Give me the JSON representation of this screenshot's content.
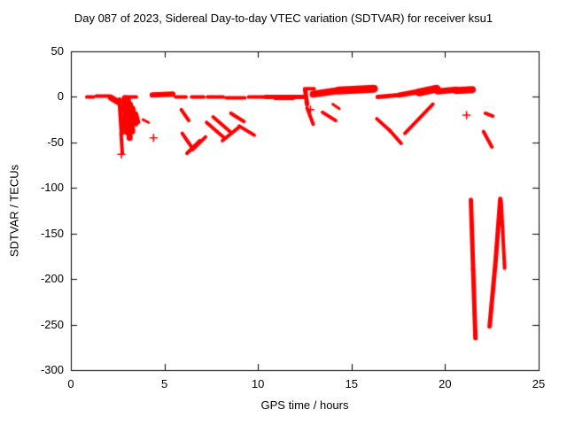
{
  "chart_data": {
    "type": "scatter",
    "title": "Day 087 of 2023, Sidereal Day-to-day VTEC variation (SDTVAR) for receiver ksu1",
    "xlabel": "GPS time / hours",
    "ylabel": "SDTVAR / TECUs",
    "xlim": [
      0,
      25
    ],
    "ylim": [
      -300,
      50
    ],
    "x_ticks": [
      0,
      5,
      10,
      15,
      20,
      25
    ],
    "x_tick_labels": [
      "0",
      "5",
      "10",
      "15",
      "20",
      "25"
    ],
    "y_ticks": [
      50,
      0,
      -50,
      -100,
      -150,
      -200,
      -250,
      -300
    ],
    "y_tick_labels": [
      "50",
      "0",
      "-50",
      "-100",
      "-150",
      "-200",
      "-250",
      "-300"
    ],
    "grid": false,
    "legend": "none",
    "point_color": "#ff0000",
    "axis_color": "#000000",
    "marker": "+",
    "series": [
      {
        "name": "sdtvar",
        "segments": [
          [
            0.85,
            0,
            1.2,
            0,
            4
          ],
          [
            1.35,
            1,
            2.1,
            1,
            4
          ],
          [
            2.15,
            -1,
            2.55,
            -6,
            7
          ],
          [
            2.6,
            -3,
            2.72,
            -40,
            5
          ],
          [
            2.68,
            -40,
            2.75,
            -62,
            4
          ],
          [
            2.78,
            -32,
            2.88,
            -18,
            3
          ],
          [
            2.85,
            0,
            3.5,
            0,
            4
          ],
          [
            2.9,
            -2,
            3.0,
            -38,
            8
          ],
          [
            3.05,
            -4,
            3.14,
            -45,
            7
          ],
          [
            3.18,
            -8,
            3.3,
            -38,
            6
          ],
          [
            3.32,
            -12,
            3.48,
            -30,
            5
          ],
          [
            3.5,
            -18,
            3.62,
            -28,
            4
          ],
          [
            3.85,
            -25,
            4.15,
            -28,
            3
          ],
          [
            4.35,
            2,
            5.45,
            3,
            6
          ],
          [
            5.6,
            0,
            6.15,
            0,
            4
          ],
          [
            5.9,
            -14,
            6.3,
            -26,
            4
          ],
          [
            5.95,
            -40,
            6.45,
            -55,
            4
          ],
          [
            6.2,
            -62,
            6.9,
            -48,
            4
          ],
          [
            6.5,
            -58,
            7.2,
            -44,
            4
          ],
          [
            6.45,
            0,
            7.1,
            0,
            4
          ],
          [
            7.25,
            -28,
            8.2,
            -45,
            4
          ],
          [
            7.6,
            -22,
            8.5,
            -38,
            4
          ],
          [
            8.1,
            -48,
            9.0,
            -33,
            4
          ],
          [
            8.55,
            -18,
            9.25,
            -27,
            4
          ],
          [
            9.0,
            -32,
            9.8,
            -42,
            4
          ],
          [
            7.3,
            0,
            8.15,
            0,
            4
          ],
          [
            8.3,
            -1,
            9.3,
            -1,
            4
          ],
          [
            9.5,
            0,
            10.3,
            0,
            4
          ],
          [
            10.4,
            0,
            12.4,
            0,
            5
          ],
          [
            10.9,
            -2,
            11.9,
            -2,
            3
          ],
          [
            12.5,
            9,
            13.0,
            9,
            4
          ],
          [
            12.52,
            8,
            12.62,
            -8,
            5
          ],
          [
            12.62,
            -12,
            12.95,
            -30,
            4
          ],
          [
            12.95,
            3,
            14.3,
            7,
            8
          ],
          [
            14.3,
            7,
            16.2,
            9,
            9
          ],
          [
            13.45,
            -17,
            14.15,
            -26,
            4
          ],
          [
            14.0,
            -8,
            14.35,
            -13,
            3
          ],
          [
            16.35,
            -24,
            17.05,
            -37,
            4
          ],
          [
            17.05,
            -37,
            17.65,
            -51,
            4
          ],
          [
            16.4,
            0,
            17.5,
            2,
            5
          ],
          [
            17.55,
            2,
            18.6,
            6,
            6
          ],
          [
            18.6,
            5,
            19.55,
            9,
            9
          ],
          [
            17.85,
            -40,
            18.6,
            -24,
            4
          ],
          [
            18.6,
            -24,
            19.35,
            -8,
            4
          ],
          [
            19.6,
            6,
            20.6,
            8,
            7
          ],
          [
            20.6,
            7,
            21.45,
            8,
            8
          ],
          [
            22.15,
            -18,
            22.55,
            -21,
            4
          ],
          [
            21.38,
            -113,
            21.5,
            -190,
            5
          ],
          [
            21.5,
            -190,
            21.62,
            -265,
            5
          ],
          [
            22.05,
            -38,
            22.5,
            -55,
            4
          ],
          [
            22.38,
            -252,
            22.7,
            -180,
            5
          ],
          [
            22.7,
            -180,
            22.95,
            -112,
            5
          ],
          [
            23.0,
            -115,
            23.18,
            -188,
            4
          ]
        ],
        "crosses": [
          [
            2.7,
            -63
          ],
          [
            4.42,
            -45
          ],
          [
            12.8,
            -14
          ],
          [
            21.15,
            -20
          ]
        ]
      }
    ]
  }
}
